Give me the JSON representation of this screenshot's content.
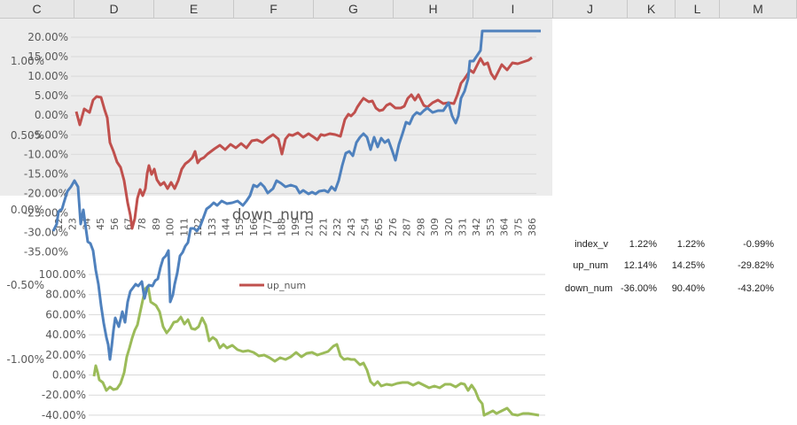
{
  "columns": [
    "C",
    "D",
    "E",
    "F",
    "G",
    "H",
    "I",
    "J",
    "K",
    "L",
    "M"
  ],
  "background_chart": {
    "y_ticks": [
      "1.00%",
      "0.50%",
      "0.00%",
      "-0.50%",
      "-1.00%"
    ]
  },
  "top_chart": {
    "y_ticks": [
      "20.00%",
      "15.00%",
      "10.00%",
      "5.00%",
      "0.00%",
      "-5.00%",
      "-10.00%",
      "-15.00%",
      "-20.00%",
      "-25.00%",
      "-30.00%",
      "-35.00%"
    ],
    "x_ticks": [
      "12",
      "23",
      "34",
      "45",
      "56",
      "67",
      "78",
      "89",
      "100",
      "111",
      "122",
      "133",
      "144",
      "155",
      "166",
      "177",
      "188",
      "199",
      "210",
      "221",
      "232",
      "243",
      "254",
      "265",
      "276",
      "287",
      "298",
      "309",
      "320",
      "331",
      "342",
      "353",
      "364",
      "375",
      "386"
    ],
    "overlay_title": "down_num",
    "series_colors": {
      "red": "#c0504d",
      "blue": "#4f81bd"
    }
  },
  "bottom_chart": {
    "y_ticks": [
      "100.00%",
      "80.00%",
      "60.00%",
      "40.00%",
      "20.00%",
      "0.00%",
      "-20.00%",
      "-40.00%"
    ],
    "legend_label": "up_num",
    "legend_color": "#c0504d",
    "series_color": "#9bbb59",
    "overlap_color": "#4f81bd"
  },
  "table": {
    "rows": [
      {
        "label": "index_v",
        "k": "1.22%",
        "l": "1.22%",
        "m": "-0.99%"
      },
      {
        "label": "up_num",
        "k": "12.14%",
        "l": "14.25%",
        "m": "-29.82%"
      },
      {
        "label": "down_num",
        "k": "-36.00%",
        "l": "90.40%",
        "m": "-43.20%"
      }
    ]
  }
}
